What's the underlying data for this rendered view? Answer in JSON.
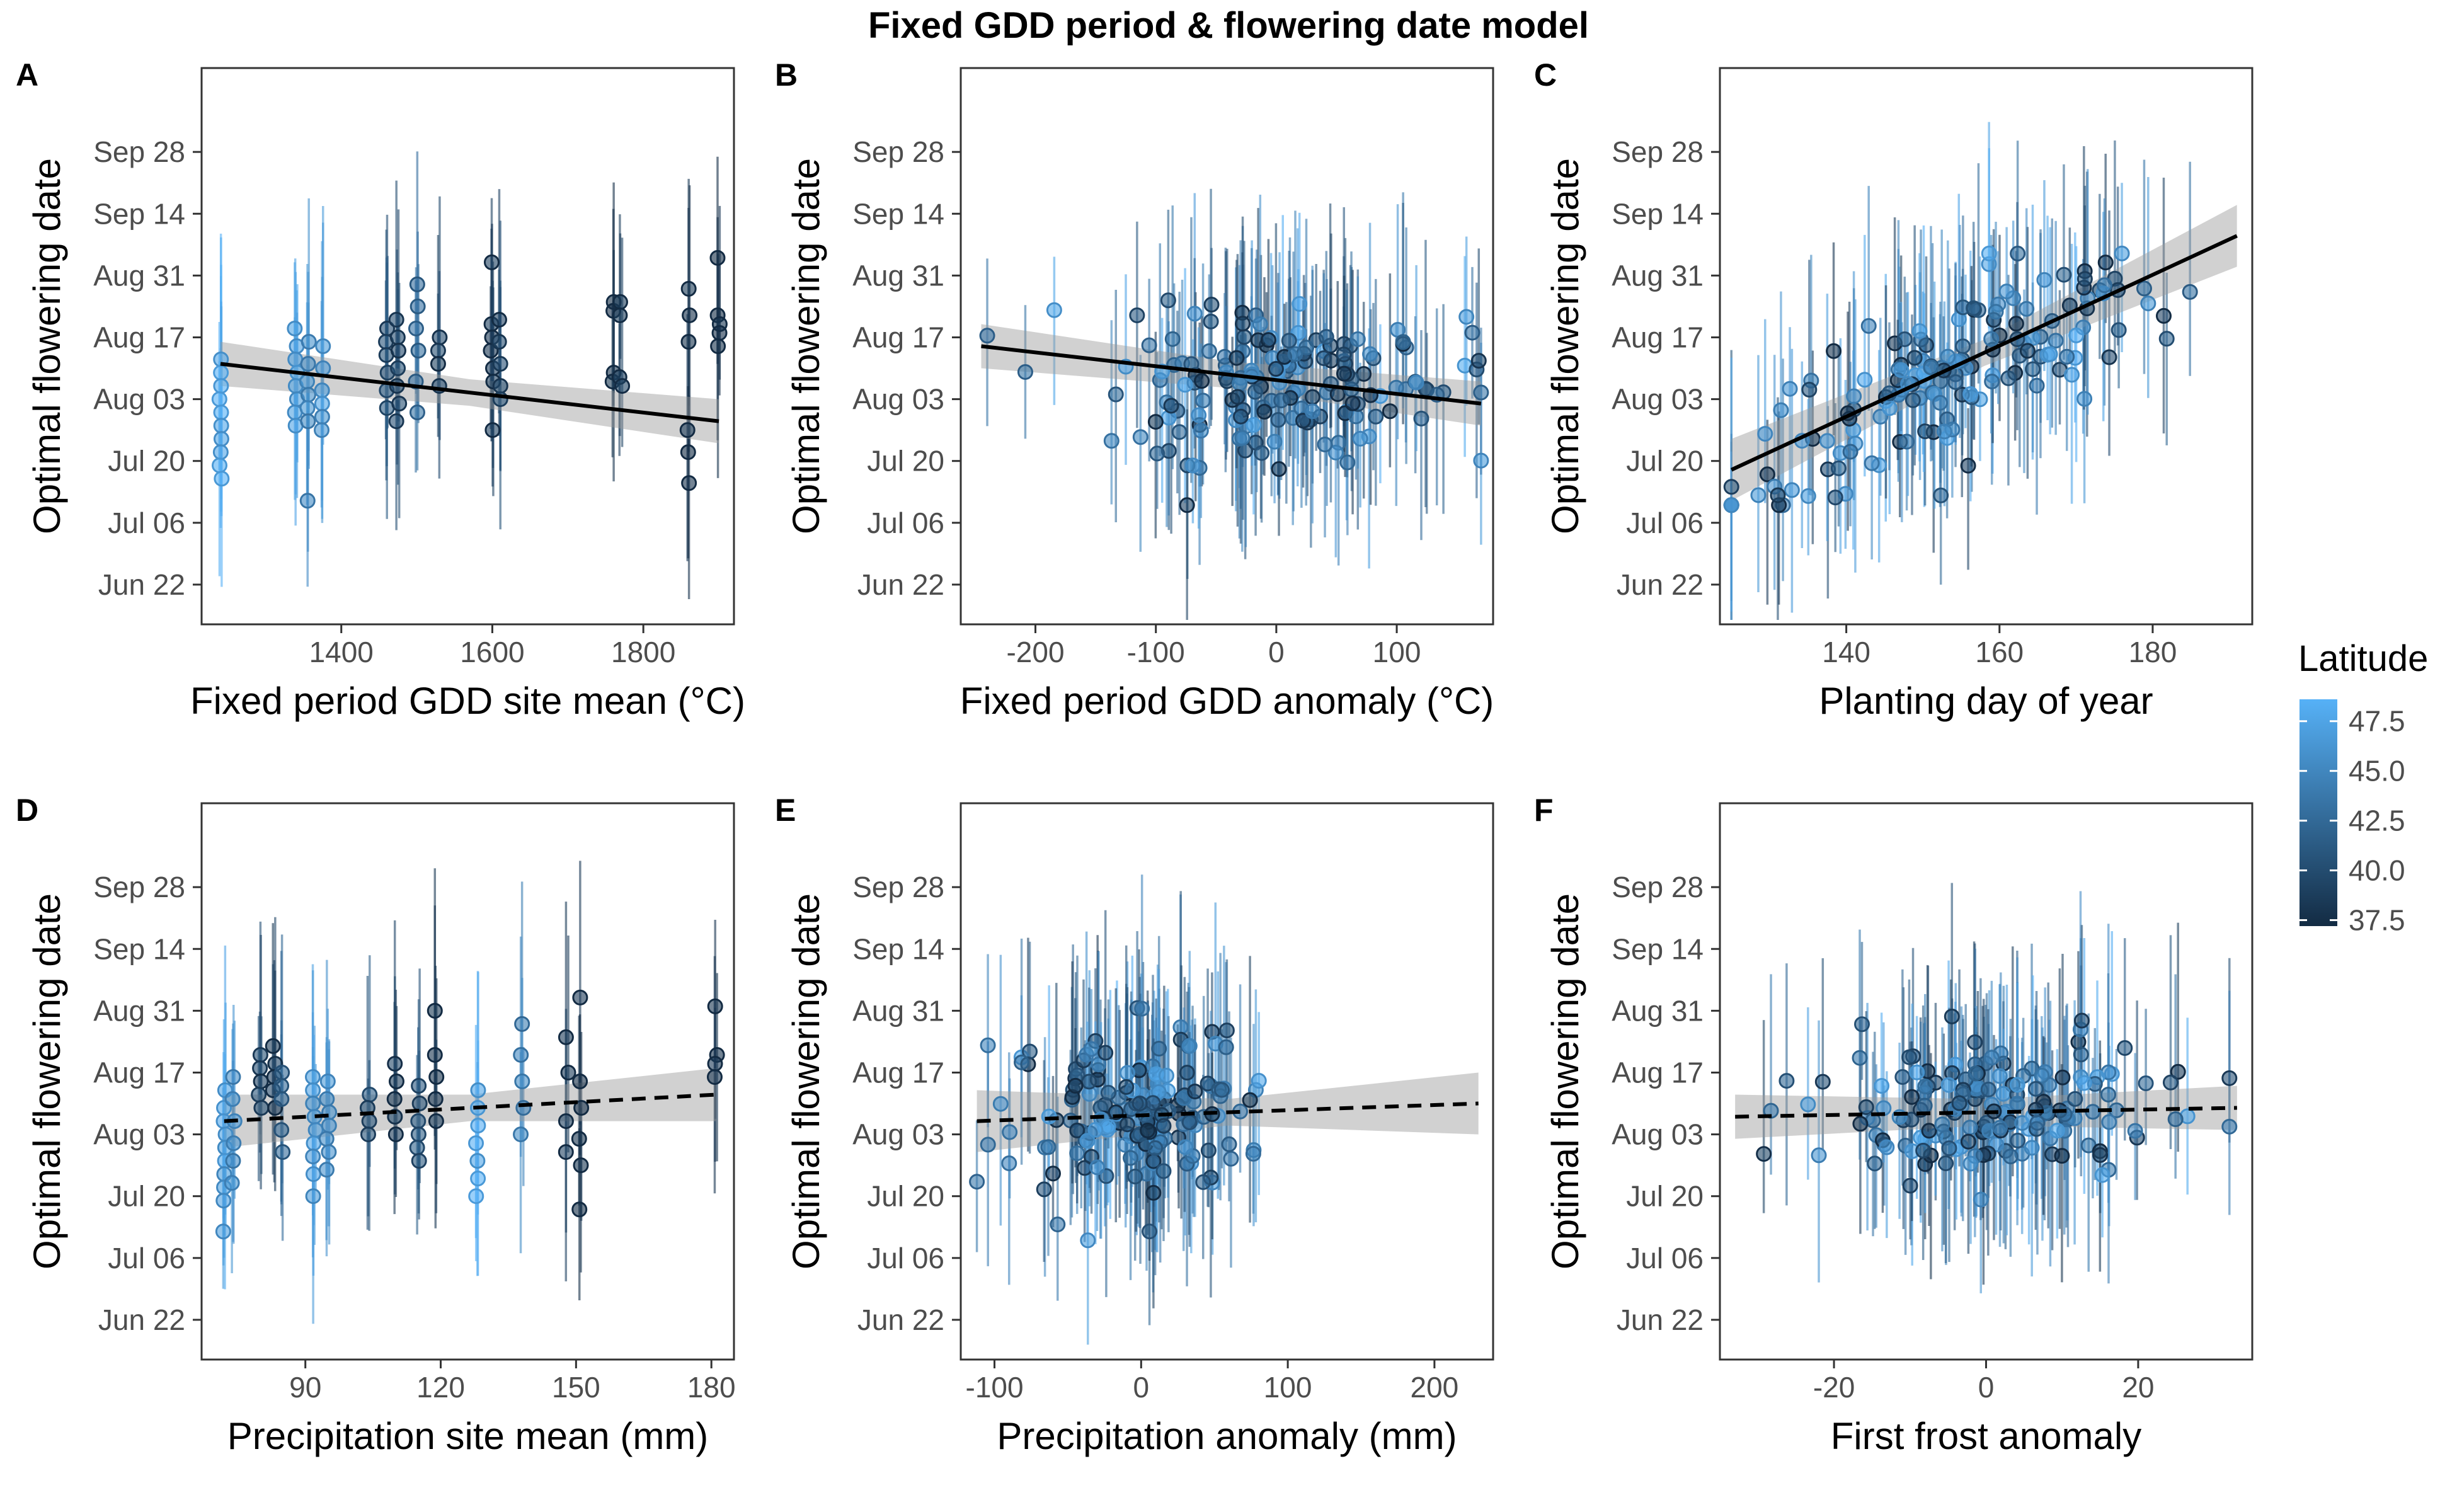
{
  "figure": {
    "title": "Fixed GDD period & flowering date model"
  },
  "legend": {
    "title": "Latitude",
    "ticks": [
      "47.5",
      "45.0",
      "42.5",
      "40.0",
      "37.5"
    ],
    "range": [
      37.2,
      48.6
    ],
    "colors": {
      "low": "#132B43",
      "high": "#56B1F7"
    }
  },
  "y_axis": {
    "label": "Optimal flowering date",
    "tick_labels": [
      "Jun 22",
      "Jul 06",
      "Jul 20",
      "Aug 03",
      "Aug 17",
      "Aug 31",
      "Sep 14",
      "Sep 28"
    ],
    "tick_values": [
      0,
      14,
      28,
      42,
      56,
      70,
      84,
      98
    ],
    "range": [
      -9,
      117
    ]
  },
  "chart_data": [
    {
      "type": "scatter",
      "letter": "A",
      "title": "",
      "xlabel": "Fixed period GDD site mean (°C)",
      "ylabel": "Optimal flowering date",
      "xlim": [
        1215,
        1920
      ],
      "ylim": [
        -9,
        117
      ],
      "xticks": [
        1400,
        1600,
        1800
      ],
      "xtick_labels": [
        "1400",
        "1600",
        "1800"
      ],
      "trend": {
        "x": [
          1240,
          1900
        ],
        "y": [
          50,
          37
        ],
        "dashed": false,
        "band": [
          3,
          5
        ]
      },
      "clusters": [
        {
          "x": 1240,
          "lat": 48,
          "y": [
            51,
            48,
            45,
            42,
            39,
            36,
            33,
            30,
            27,
            24
          ]
        },
        {
          "x": 1340,
          "lat": 47.5,
          "y": [
            58,
            54,
            51,
            48,
            45,
            42,
            39,
            36
          ]
        },
        {
          "x": 1355,
          "lat": 46,
          "y": [
            55,
            50,
            46,
            43,
            40,
            37,
            19
          ]
        },
        {
          "x": 1375,
          "lat": 47,
          "y": [
            54,
            49,
            44,
            41,
            38,
            35
          ]
        },
        {
          "x": 1460,
          "lat": 41,
          "y": [
            58,
            55,
            52,
            48,
            44,
            40
          ]
        },
        {
          "x": 1475,
          "lat": 40,
          "y": [
            60,
            56,
            53,
            49,
            45,
            41,
            37
          ]
        },
        {
          "x": 1500,
          "lat": 43,
          "y": [
            68,
            63,
            58,
            53,
            46,
            39
          ]
        },
        {
          "x": 1530,
          "lat": 39.5,
          "y": [
            56,
            53,
            50,
            45
          ]
        },
        {
          "x": 1600,
          "lat": 38.5,
          "y": [
            73,
            59,
            56,
            53,
            49,
            46,
            35
          ]
        },
        {
          "x": 1610,
          "lat": 40,
          "y": [
            60,
            55,
            50,
            45,
            42
          ]
        },
        {
          "x": 1760,
          "lat": 38,
          "y": [
            64,
            62,
            48,
            46
          ]
        },
        {
          "x": 1770,
          "lat": 39,
          "y": [
            64,
            61,
            47,
            45
          ]
        },
        {
          "x": 1860,
          "lat": 38,
          "y": [
            67,
            61,
            55,
            35,
            30,
            23
          ]
        },
        {
          "x": 1900,
          "lat": 37.8,
          "y": [
            74,
            61,
            59,
            57,
            54
          ]
        }
      ]
    },
    {
      "type": "scatter",
      "letter": "B",
      "title": "",
      "xlabel": "Fixed period GDD anomaly (°C)",
      "ylabel": "Optimal flowering date",
      "xlim": [
        -262,
        180
      ],
      "ylim": [
        -9,
        117
      ],
      "xticks": [
        -200,
        -100,
        0,
        100
      ],
      "xtick_labels": [
        "-200",
        "-100",
        "0",
        "100"
      ],
      "trend": {
        "x": [
          -245,
          170
        ],
        "y": [
          54,
          41
        ],
        "dashed": false,
        "band": [
          3,
          5
        ]
      },
      "cloud": {
        "n": 170,
        "x_mean": 0,
        "x_sd": 72,
        "x_min": -240,
        "x_max": 170,
        "y_mean": 46,
        "y_sd": 9
      }
    },
    {
      "type": "scatter",
      "letter": "C",
      "title": "",
      "xlabel": "Planting day of year",
      "ylabel": "Optimal flowering date",
      "xlim": [
        123.5,
        193
      ],
      "ylim": [
        -9,
        117
      ],
      "xticks": [
        140,
        160,
        180
      ],
      "xtick_labels": [
        "140",
        "160",
        "180"
      ],
      "trend": {
        "x": [
          125,
          191
        ],
        "y": [
          26,
          79
        ],
        "dashed": false,
        "band": [
          3,
          7
        ]
      },
      "cloud": {
        "n": 160,
        "x_mean": 155,
        "x_sd": 14,
        "x_min": 125,
        "x_max": 190,
        "y_mean": 48,
        "y_sd": 9,
        "slope": 0.8,
        "x_ref": 155
      }
    },
    {
      "type": "scatter",
      "letter": "D",
      "title": "",
      "xlabel": "Precipitation site mean (mm)",
      "ylabel": "Optimal flowering date",
      "xlim": [
        67,
        185
      ],
      "ylim": [
        -9,
        117
      ],
      "xticks": [
        90,
        120,
        150,
        180
      ],
      "xtick_labels": [
        "90",
        "120",
        "150",
        "180"
      ],
      "trend": {
        "x": [
          72,
          181
        ],
        "y": [
          45,
          51
        ],
        "dashed": true,
        "band": [
          3,
          6
        ]
      },
      "clusters": [
        {
          "x": 72,
          "lat": 47.5,
          "y": [
            52,
            48,
            45,
            42,
            39,
            36,
            33,
            30,
            27,
            20
          ]
        },
        {
          "x": 74,
          "lat": 46,
          "y": [
            55,
            50,
            45,
            40,
            36,
            31
          ]
        },
        {
          "x": 80,
          "lat": 40,
          "y": [
            60,
            57,
            54,
            51,
            48
          ]
        },
        {
          "x": 83,
          "lat": 39,
          "y": [
            62,
            58,
            55,
            52,
            48
          ]
        },
        {
          "x": 85,
          "lat": 42,
          "y": [
            56,
            53,
            50,
            43,
            38
          ]
        },
        {
          "x": 92,
          "lat": 47,
          "y": [
            55,
            52,
            49,
            46,
            43,
            40,
            37,
            33,
            28
          ]
        },
        {
          "x": 95,
          "lat": 46.5,
          "y": [
            54,
            50,
            47,
            44,
            41,
            38,
            34
          ]
        },
        {
          "x": 104,
          "lat": 41,
          "y": [
            51,
            48,
            45,
            42
          ]
        },
        {
          "x": 110,
          "lat": 39,
          "y": [
            58,
            54,
            50,
            46,
            42
          ]
        },
        {
          "x": 115,
          "lat": 41,
          "y": [
            53,
            49,
            45,
            42,
            39,
            36
          ]
        },
        {
          "x": 119,
          "lat": 38.5,
          "y": [
            70,
            60,
            55,
            50,
            45
          ]
        },
        {
          "x": 128,
          "lat": 48,
          "y": [
            52,
            48,
            44,
            40,
            36,
            32,
            28
          ]
        },
        {
          "x": 138,
          "lat": 45,
          "y": [
            67,
            60,
            54,
            48,
            42
          ]
        },
        {
          "x": 148,
          "lat": 38.5,
          "y": [
            64,
            56,
            45,
            38
          ]
        },
        {
          "x": 151,
          "lat": 37.8,
          "y": [
            73,
            54,
            48,
            41,
            35,
            25
          ]
        },
        {
          "x": 181,
          "lat": 38,
          "y": [
            71,
            60,
            58,
            55
          ]
        }
      ]
    },
    {
      "type": "scatter",
      "letter": "E",
      "title": "",
      "xlabel": "Precipitation anomaly (mm)",
      "ylabel": "Optimal flowering date",
      "xlim": [
        -123,
        240
      ],
      "ylim": [
        -9,
        117
      ],
      "xticks": [
        -100,
        0,
        100,
        200
      ],
      "xtick_labels": [
        "-100",
        "0",
        "100",
        "200"
      ],
      "trend": {
        "x": [
          -112,
          230
        ],
        "y": [
          45,
          49
        ],
        "dashed": true,
        "band": [
          3,
          7
        ]
      },
      "cloud": {
        "n": 170,
        "x_mean": -5,
        "x_sd": 38,
        "x_min": -112,
        "x_max": 210,
        "y_mean": 47,
        "y_sd": 9
      }
    },
    {
      "type": "scatter",
      "letter": "F",
      "title": "",
      "xlabel": "First frost anomaly",
      "ylabel": "Optimal flowering date",
      "xlim": [
        -35,
        35
      ],
      "ylim": [
        -9,
        117
      ],
      "xticks": [
        -20,
        0,
        20
      ],
      "xtick_labels": [
        "-20",
        "0",
        "20"
      ],
      "trend": {
        "x": [
          -33,
          33
        ],
        "y": [
          46,
          48
        ],
        "dashed": true,
        "band": [
          3,
          5
        ]
      },
      "cloud": {
        "n": 170,
        "x_mean": 0,
        "x_sd": 11,
        "x_min": -33,
        "x_max": 32,
        "y_mean": 47,
        "y_sd": 8
      }
    }
  ]
}
